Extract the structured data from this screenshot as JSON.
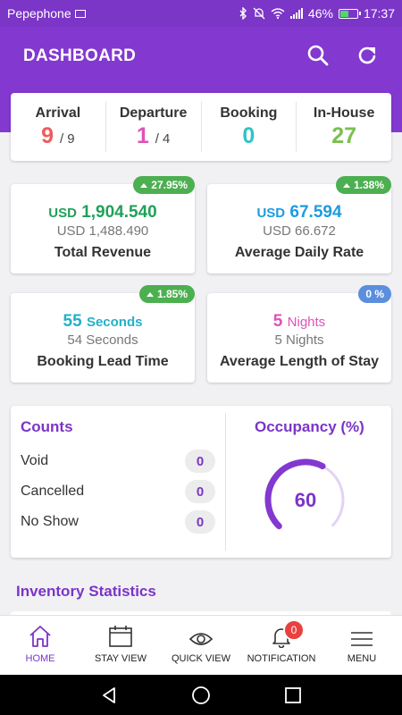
{
  "status_bar": {
    "carrier": "Pepephone",
    "battery": "46%",
    "time": "17:37"
  },
  "header": {
    "title": "DASHBOARD"
  },
  "summary": [
    {
      "label": "Arrival",
      "value": "9",
      "sub": "/ 9",
      "color": "#ef5b5b"
    },
    {
      "label": "Departure",
      "value": "1",
      "sub": "/ 4",
      "color": "#e052b7"
    },
    {
      "label": "Booking",
      "value": "0",
      "sub": "",
      "color": "#2ec4c4"
    },
    {
      "label": "In-House",
      "value": "27",
      "sub": "",
      "color": "#7bbf4f"
    }
  ],
  "metrics": {
    "revenue": {
      "badge": "27.95%",
      "unit": "USD",
      "value": "1,904.540",
      "secondary": "USD 1,488.490",
      "label": "Total Revenue",
      "color": "#21a05a",
      "badge_color": "#4caf50"
    },
    "adr": {
      "badge": "1.38%",
      "unit": "USD",
      "value": "67.594",
      "secondary": "USD 66.672",
      "label": "Average Daily Rate",
      "color": "#1e9be0",
      "badge_color": "#4caf50"
    },
    "lead_time": {
      "badge": "1.85%",
      "value": "55",
      "unit": "Seconds",
      "secondary": "54 Seconds",
      "label": "Booking Lead Time",
      "color": "#23b0c8",
      "badge_color": "#4caf50"
    },
    "los": {
      "badge": "0 %",
      "value": "5",
      "unit": "Nights",
      "secondary": "5 Nights",
      "label": "Average Length of Stay",
      "color": "#e052b7",
      "badge_color": "#5b8fdd"
    }
  },
  "counts": {
    "title": "Counts",
    "rows": [
      {
        "label": "Void",
        "value": "0"
      },
      {
        "label": "Cancelled",
        "value": "0"
      },
      {
        "label": "No Show",
        "value": "0"
      }
    ]
  },
  "occupancy": {
    "title": "Occupancy (%)",
    "value": "60",
    "percent": 60,
    "color": "#8338d0"
  },
  "inventory": {
    "title": "Inventory Statistics"
  },
  "nav": [
    {
      "label": "HOME",
      "icon": "home-icon",
      "active": true
    },
    {
      "label": "STAY VIEW",
      "icon": "calendar-icon"
    },
    {
      "label": "QUICK VIEW",
      "icon": "eye-icon"
    },
    {
      "label": "NOTIFICATION",
      "icon": "bell-icon",
      "badge": "0"
    },
    {
      "label": "MENU",
      "icon": "menu-icon"
    }
  ]
}
